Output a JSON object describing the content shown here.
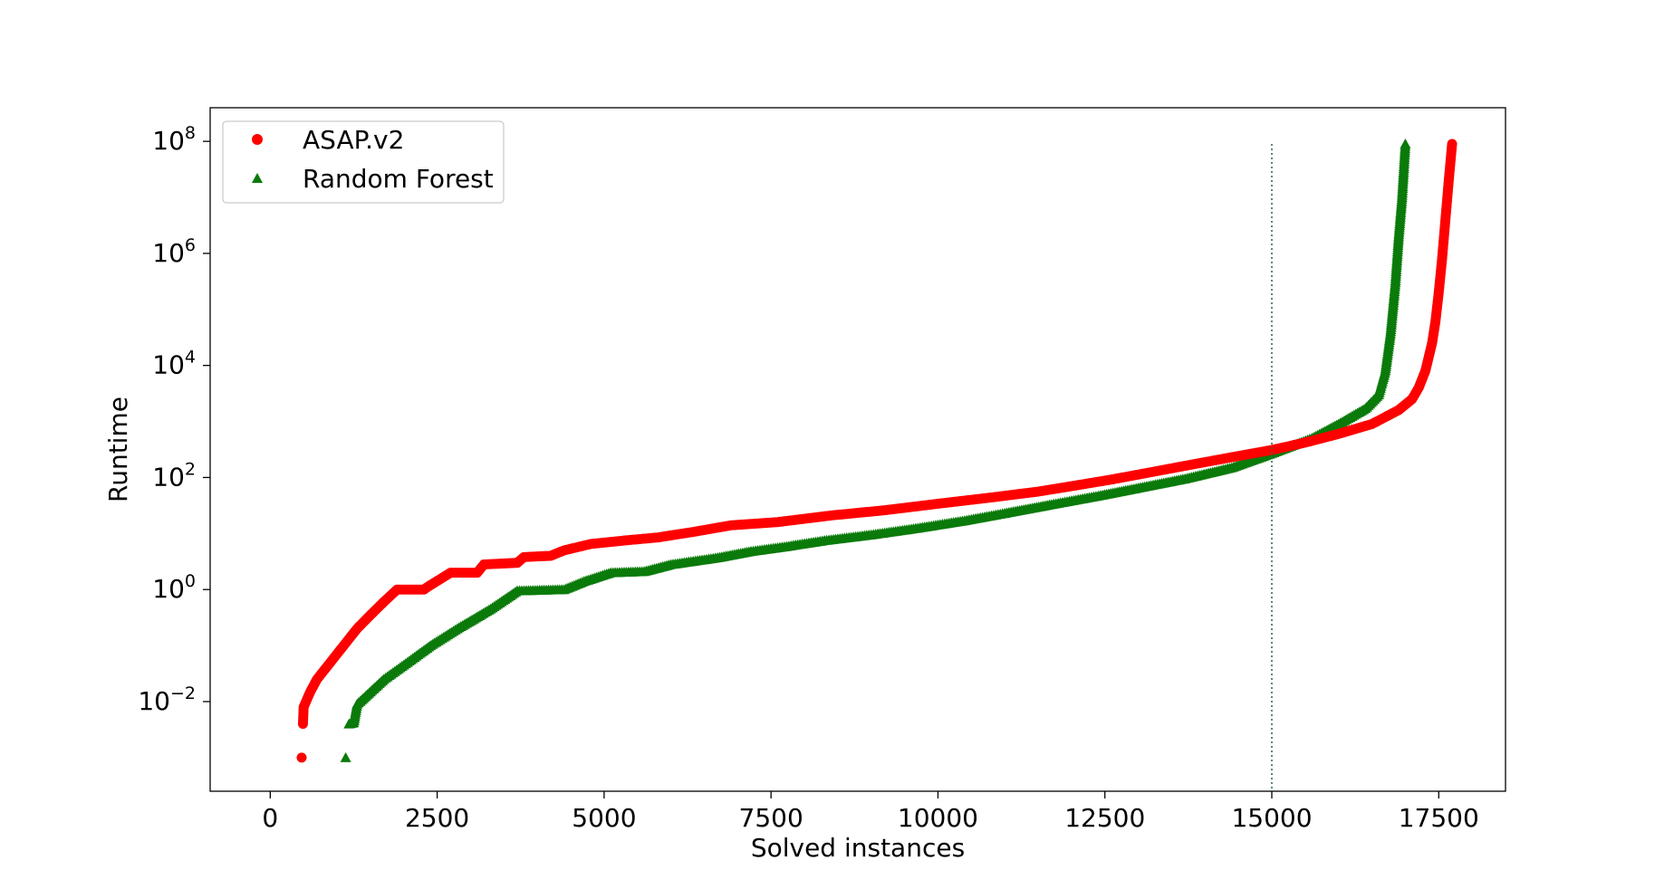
{
  "chart_data": {
    "type": "scatter",
    "xlabel": "Solved instances",
    "ylabel": "Runtime",
    "xlim": [
      -900,
      18500
    ],
    "ylim_log10": [
      -3.6,
      8.6
    ],
    "y_scale": "log",
    "x_ticks": [
      0,
      2500,
      5000,
      7500,
      10000,
      12500,
      15000,
      17500
    ],
    "x_tick_labels": [
      "0",
      "2500",
      "5000",
      "7500",
      "10000",
      "12500",
      "15000",
      "17500"
    ],
    "y_ticks_log10": [
      -2,
      0,
      2,
      4,
      6,
      8
    ],
    "y_tick_labels": [
      {
        "base": "10",
        "exp": "−2"
      },
      {
        "base": "10",
        "exp": "0"
      },
      {
        "base": "10",
        "exp": "2"
      },
      {
        "base": "10",
        "exp": "4"
      },
      {
        "base": "10",
        "exp": "6"
      },
      {
        "base": "10",
        "exp": "8"
      }
    ],
    "grid": false,
    "legend_placement": "top-left",
    "reference_line": {
      "x": 15000,
      "style": "dotted",
      "color": "#2f6f4f"
    },
    "series": [
      {
        "name": "ASAP.v2",
        "marker": "circle",
        "color": "#ff0000",
        "points": [
          [
            470,
            0.001
          ],
          [
            490,
            0.004
          ],
          [
            500,
            0.008
          ],
          [
            600,
            0.015
          ],
          [
            700,
            0.025
          ],
          [
            900,
            0.05
          ],
          [
            1100,
            0.1
          ],
          [
            1300,
            0.2
          ],
          [
            1500,
            0.35
          ],
          [
            1700,
            0.6
          ],
          [
            1900,
            1
          ],
          [
            2300,
            1
          ],
          [
            2400,
            1.2
          ],
          [
            2700,
            2
          ],
          [
            3100,
            2
          ],
          [
            3200,
            2.8
          ],
          [
            3700,
            3
          ],
          [
            3800,
            3.8
          ],
          [
            4200,
            4
          ],
          [
            4400,
            5
          ],
          [
            4800,
            6.5
          ],
          [
            5300,
            7.5
          ],
          [
            5800,
            8.5
          ],
          [
            6300,
            10.5
          ],
          [
            6900,
            14
          ],
          [
            7600,
            16
          ],
          [
            8400,
            21
          ],
          [
            9200,
            26
          ],
          [
            10000,
            34
          ],
          [
            10800,
            44
          ],
          [
            11500,
            56
          ],
          [
            12000,
            70
          ],
          [
            12600,
            92
          ],
          [
            13200,
            125
          ],
          [
            13800,
            170
          ],
          [
            14400,
            230
          ],
          [
            15000,
            310
          ],
          [
            15500,
            420
          ],
          [
            16000,
            600
          ],
          [
            16500,
            900
          ],
          [
            16900,
            1600
          ],
          [
            17100,
            2500
          ],
          [
            17200,
            4000
          ],
          [
            17300,
            8000
          ],
          [
            17400,
            25000
          ],
          [
            17450,
            60000
          ],
          [
            17500,
            200000
          ],
          [
            17550,
            800000
          ],
          [
            17600,
            4000000
          ],
          [
            17650,
            20000000
          ],
          [
            17700,
            90000000
          ]
        ]
      },
      {
        "name": "Random Forest",
        "marker": "triangle",
        "color": "#0a7a0a",
        "points": [
          [
            1130,
            0.001
          ],
          [
            1180,
            0.004
          ],
          [
            1250,
            0.0042
          ],
          [
            1300,
            0.009
          ],
          [
            1500,
            0.015
          ],
          [
            1700,
            0.025
          ],
          [
            2000,
            0.045
          ],
          [
            2400,
            0.1
          ],
          [
            2800,
            0.2
          ],
          [
            3300,
            0.45
          ],
          [
            3700,
            0.95
          ],
          [
            4400,
            1
          ],
          [
            4700,
            1.4
          ],
          [
            5100,
            2
          ],
          [
            5600,
            2.1
          ],
          [
            6000,
            2.8
          ],
          [
            6700,
            3.7
          ],
          [
            7200,
            4.8
          ],
          [
            7700,
            5.8
          ],
          [
            8300,
            7.5
          ],
          [
            9000,
            9.5
          ],
          [
            9700,
            12.5
          ],
          [
            10400,
            17
          ],
          [
            11000,
            23
          ],
          [
            11700,
            33
          ],
          [
            12400,
            47
          ],
          [
            13000,
            65
          ],
          [
            13700,
            95
          ],
          [
            14400,
            150
          ],
          [
            15000,
            270
          ],
          [
            15600,
            500
          ],
          [
            16000,
            900
          ],
          [
            16400,
            1700
          ],
          [
            16600,
            3000
          ],
          [
            16700,
            8000
          ],
          [
            16780,
            40000
          ],
          [
            16850,
            300000
          ],
          [
            16900,
            2000000
          ],
          [
            16950,
            10000000
          ],
          [
            17000,
            90000000
          ]
        ]
      }
    ]
  }
}
